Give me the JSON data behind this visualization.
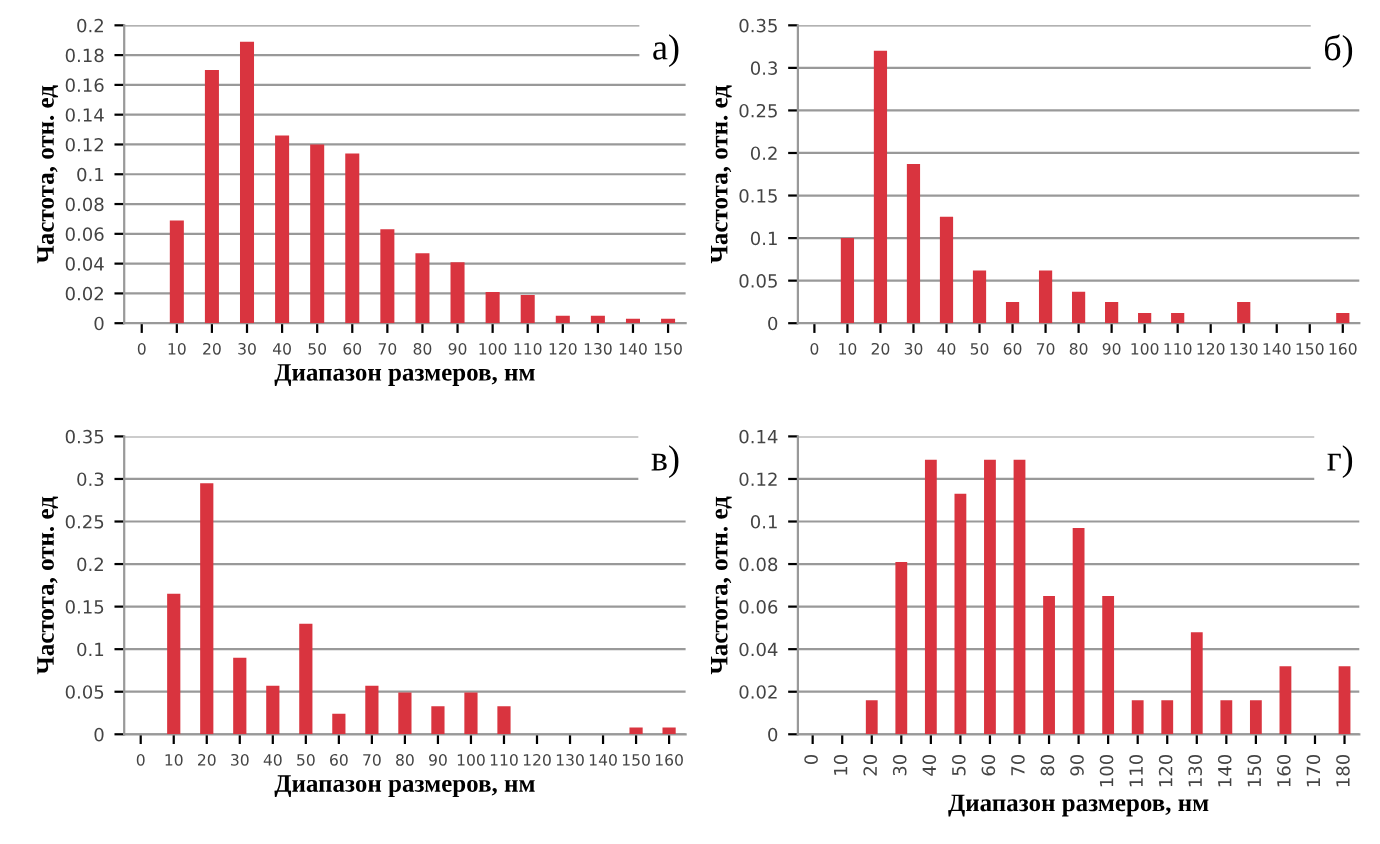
{
  "chart_data": [
    {
      "type": "bar",
      "title": "а)",
      "xlabel": "Диапазон размеров, нм",
      "ylabel": "Частота, отн. ед",
      "color": "#d9343f",
      "grid": "y",
      "categories": [
        "0",
        "10",
        "20",
        "30",
        "40",
        "50",
        "60",
        "70",
        "80",
        "90",
        "100",
        "110",
        "120",
        "130",
        "140",
        "150"
      ],
      "values": [
        0,
        0.069,
        0.17,
        0.189,
        0.126,
        0.12,
        0.114,
        0.063,
        0.047,
        0.041,
        0.021,
        0.019,
        0.005,
        0.005,
        0.003,
        0.003
      ],
      "ylim": [
        0,
        0.2
      ],
      "yticks": [
        0,
        0.02,
        0.04,
        0.06,
        0.08,
        0.1,
        0.12,
        0.14,
        0.16,
        0.18,
        0.2
      ]
    },
    {
      "type": "bar",
      "title": "б)",
      "ylabel": "Частота, отн. ед",
      "color": "#d9343f",
      "grid": "y",
      "categories": [
        "0",
        "10",
        "20",
        "30",
        "40",
        "50",
        "60",
        "70",
        "80",
        "90",
        "100",
        "110",
        "120",
        "130",
        "140",
        "150",
        "160"
      ],
      "values": [
        0,
        0.1,
        0.32,
        0.187,
        0.125,
        0.062,
        0.025,
        0.062,
        0.037,
        0.025,
        0.012,
        0.012,
        0,
        0.025,
        0,
        0,
        0.012
      ],
      "ylim": [
        0,
        0.35
      ],
      "yticks": [
        0,
        0.05,
        0.1,
        0.15,
        0.2,
        0.25,
        0.3,
        0.35
      ]
    },
    {
      "type": "bar",
      "title": "в)",
      "xlabel": "Диапазон размеров, нм",
      "ylabel": "Частота, отн. ед",
      "color": "#d9343f",
      "grid": "y",
      "categories": [
        "0",
        "10",
        "20",
        "30",
        "40",
        "50",
        "60",
        "70",
        "80",
        "90",
        "100",
        "110",
        "120",
        "130",
        "140",
        "150",
        "160"
      ],
      "values": [
        0,
        0.165,
        0.295,
        0.09,
        0.057,
        0.13,
        0.024,
        0.057,
        0.049,
        0.033,
        0.049,
        0.033,
        0,
        0,
        0,
        0.008,
        0.008
      ],
      "ylim": [
        0,
        0.35
      ],
      "yticks": [
        0,
        0.05,
        0.1,
        0.15,
        0.2,
        0.25,
        0.3,
        0.35
      ]
    },
    {
      "type": "bar",
      "title": "г)",
      "xlabel": "Диапазон размеров, нм",
      "ylabel": "Частота, отн. ед",
      "color": "#d9343f",
      "grid": "y",
      "categories": [
        "0",
        "10",
        "20",
        "30",
        "40",
        "50",
        "60",
        "70",
        "80",
        "90",
        "100",
        "110",
        "120",
        "130",
        "140",
        "150",
        "160",
        "170",
        "180"
      ],
      "values": [
        0,
        0,
        0.016,
        0.081,
        0.129,
        0.113,
        0.129,
        0.129,
        0.065,
        0.097,
        0.065,
        0.016,
        0.016,
        0.048,
        0.016,
        0.016,
        0.032,
        0,
        0.032
      ],
      "ylim": [
        0,
        0.14
      ],
      "yticks": [
        0,
        0.02,
        0.04,
        0.06,
        0.08,
        0.1,
        0.12,
        0.14
      ]
    }
  ]
}
